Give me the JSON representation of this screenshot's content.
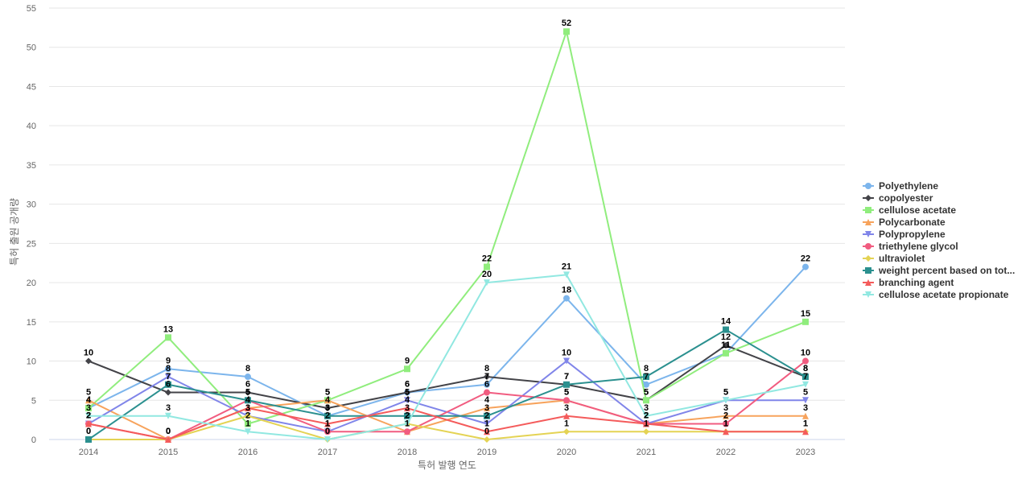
{
  "chart_data": {
    "type": "line",
    "title": "",
    "xlabel": "특허 발행 연도",
    "ylabel": "특허 출원 공개량",
    "categories": [
      "2014",
      "2015",
      "2016",
      "2017",
      "2018",
      "2019",
      "2020",
      "2021",
      "2022",
      "2023"
    ],
    "ylim": [
      0,
      55
    ],
    "yticks": [
      0,
      5,
      10,
      15,
      20,
      25,
      30,
      35,
      40,
      45,
      50,
      55
    ],
    "grid": true,
    "legend": "right",
    "series": [
      {
        "name": "Polyethylene",
        "color": "#7cb5ec",
        "marker": "circle",
        "values": [
          4,
          9,
          8,
          3,
          6,
          7,
          18,
          7,
          11,
          22
        ]
      },
      {
        "name": "copolyester",
        "color": "#434348",
        "marker": "diamond",
        "values": [
          10,
          6,
          6,
          4,
          6,
          8,
          7,
          5,
          12,
          8
        ]
      },
      {
        "name": "cellulose acetate",
        "color": "#90ed7d",
        "marker": "square",
        "values": [
          4,
          13,
          2,
          5,
          9,
          22,
          52,
          5,
          11,
          15
        ]
      },
      {
        "name": "Polycarbonate",
        "color": "#f7a35c",
        "marker": "triangle",
        "values": [
          5,
          0,
          4,
          5,
          1,
          4,
          5,
          2,
          3,
          3
        ]
      },
      {
        "name": "Polypropylene",
        "color": "#8085e9",
        "marker": "triangle-down",
        "values": [
          2,
          8,
          3,
          1,
          5,
          2,
          10,
          2,
          5,
          5
        ]
      },
      {
        "name": "triethylene glycol",
        "color": "#f15c80",
        "marker": "circle",
        "values": [
          2,
          0,
          5,
          1,
          1,
          6,
          5,
          2,
          2,
          10
        ]
      },
      {
        "name": "ultraviolet",
        "color": "#e4d354",
        "marker": "diamond",
        "values": [
          0,
          0,
          3,
          0,
          2,
          0,
          1,
          1,
          1,
          1
        ]
      },
      {
        "name": "weight percent based on tot...",
        "color": "#2b908f",
        "marker": "square",
        "values": [
          0,
          7,
          5,
          3,
          3,
          3,
          7,
          8,
          14,
          8
        ]
      },
      {
        "name": "branching agent",
        "color": "#f45b5b",
        "marker": "triangle",
        "values": [
          2,
          0,
          4,
          2,
          4,
          1,
          3,
          2,
          1,
          1
        ]
      },
      {
        "name": "cellulose acetate propionate",
        "color": "#91e8e1",
        "marker": "triangle-down",
        "values": [
          3,
          3,
          1,
          0,
          2,
          20,
          21,
          3,
          5,
          7
        ]
      }
    ]
  }
}
